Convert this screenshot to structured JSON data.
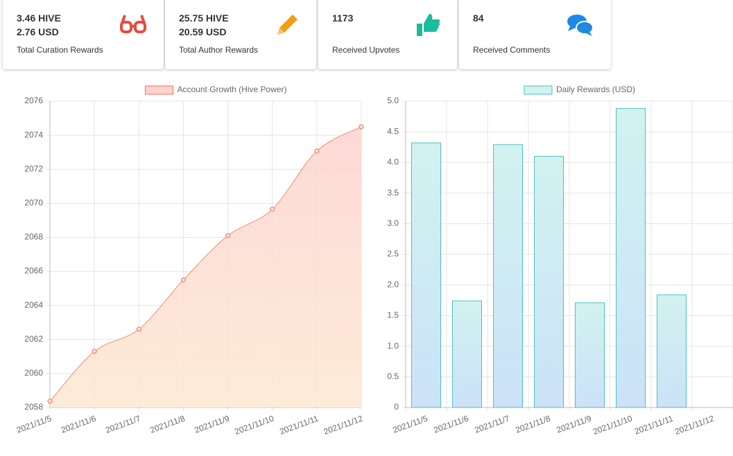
{
  "cards": [
    {
      "lines": [
        "3.46 HIVE",
        "2.76 USD"
      ],
      "caption": "Total Curation Rewards"
    },
    {
      "lines": [
        "25.75 HIVE",
        "20.59 USD"
      ],
      "caption": "Total Author Rewards"
    },
    {
      "lines": [
        "1173"
      ],
      "caption": "Received Upvotes"
    },
    {
      "lines": [
        "84"
      ],
      "caption": "Received Comments"
    }
  ],
  "chart_data": [
    {
      "type": "line",
      "series": [
        {
          "name": "Account Growth (Hive Power)",
          "color": "#f07050",
          "values": [
            2058.37,
            2061.3,
            2062.6,
            2065.5,
            2068.1,
            2069.65,
            2073.07,
            2074.5
          ]
        }
      ],
      "categories": [
        "2021/11/5",
        "2021/11/6",
        "2021/11/7",
        "2021/11/8",
        "2021/11/9",
        "2021/11/10",
        "2021/11/11",
        "2021/11/12"
      ],
      "ylim": [
        2058,
        2076
      ],
      "yticks": [
        2058,
        2060,
        2062,
        2064,
        2066,
        2068,
        2070,
        2072,
        2074,
        2076
      ],
      "grid": true
    },
    {
      "type": "bar",
      "series": [
        {
          "name": "Daily Rewards (USD)",
          "color": "#4bc0c0",
          "values": [
            4.32,
            1.74,
            4.29,
            4.1,
            1.71,
            4.88,
            1.84,
            null
          ]
        }
      ],
      "categories": [
        "2021/11/5",
        "2021/11/6",
        "2021/11/7",
        "2021/11/8",
        "2021/11/9",
        "2021/11/10",
        "2021/11/11",
        "2021/11/12"
      ],
      "ylim": [
        0,
        5
      ],
      "yticks": [
        0,
        0.5,
        {
          "value": 1,
          "label": "1.0"
        },
        1.5,
        {
          "value": 2,
          "label": "2.0"
        },
        2.5,
        {
          "value": 3,
          "label": "3.0"
        },
        3.5,
        {
          "value": 4,
          "label": "4.0"
        },
        4.5,
        {
          "value": 5,
          "label": "5.0"
        }
      ],
      "grid": true
    }
  ]
}
